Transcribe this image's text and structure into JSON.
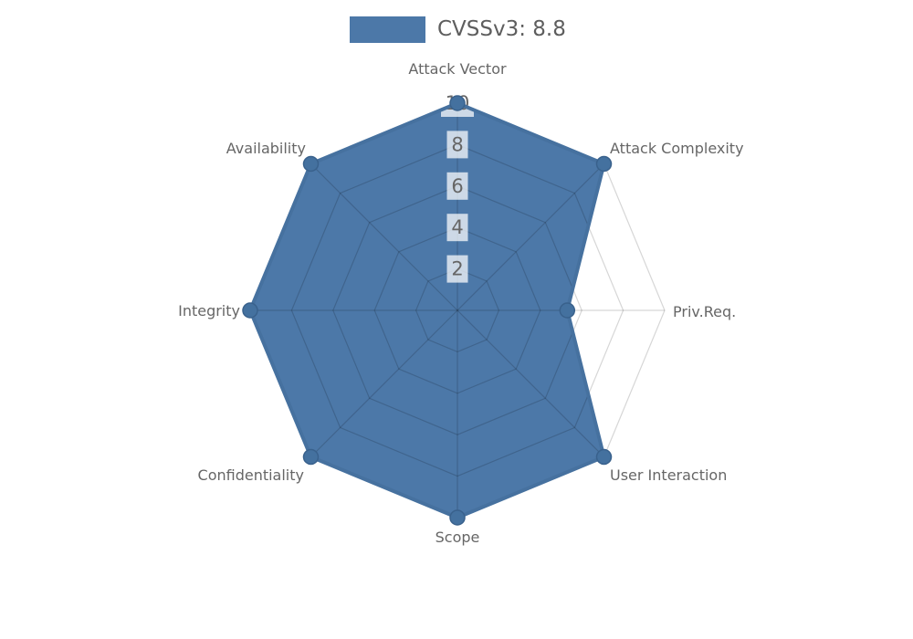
{
  "legend": {
    "label": "CVSSv3: 8.8"
  },
  "chart_data": {
    "type": "radar",
    "title": "",
    "categories": [
      "Attack Vector",
      "Attack Complexity",
      "Priv.Req.",
      "User Interaction",
      "Scope",
      "Confidentiality",
      "Integrity",
      "Availability"
    ],
    "series": [
      {
        "name": "CVSSv3: 8.8",
        "values": [
          10,
          10,
          5.3,
          10,
          10,
          10,
          10,
          10
        ]
      }
    ],
    "scale": {
      "min": 0,
      "max": 10,
      "ticks": [
        2,
        4,
        6,
        8,
        10
      ]
    },
    "grid": true,
    "legend_position": "top",
    "colors": {
      "series_fill": "#4c78a8",
      "series_stroke": "#46719f",
      "marker": "#44719f",
      "marker_edge": "#39618c",
      "grid_line": "rgba(0,0,0,0.16)",
      "tick_text": "#666666",
      "tick_backdrop": "rgba(255,255,255,0.72)",
      "axis_label": "#666666",
      "legend_text": "#5e5e5e"
    }
  }
}
